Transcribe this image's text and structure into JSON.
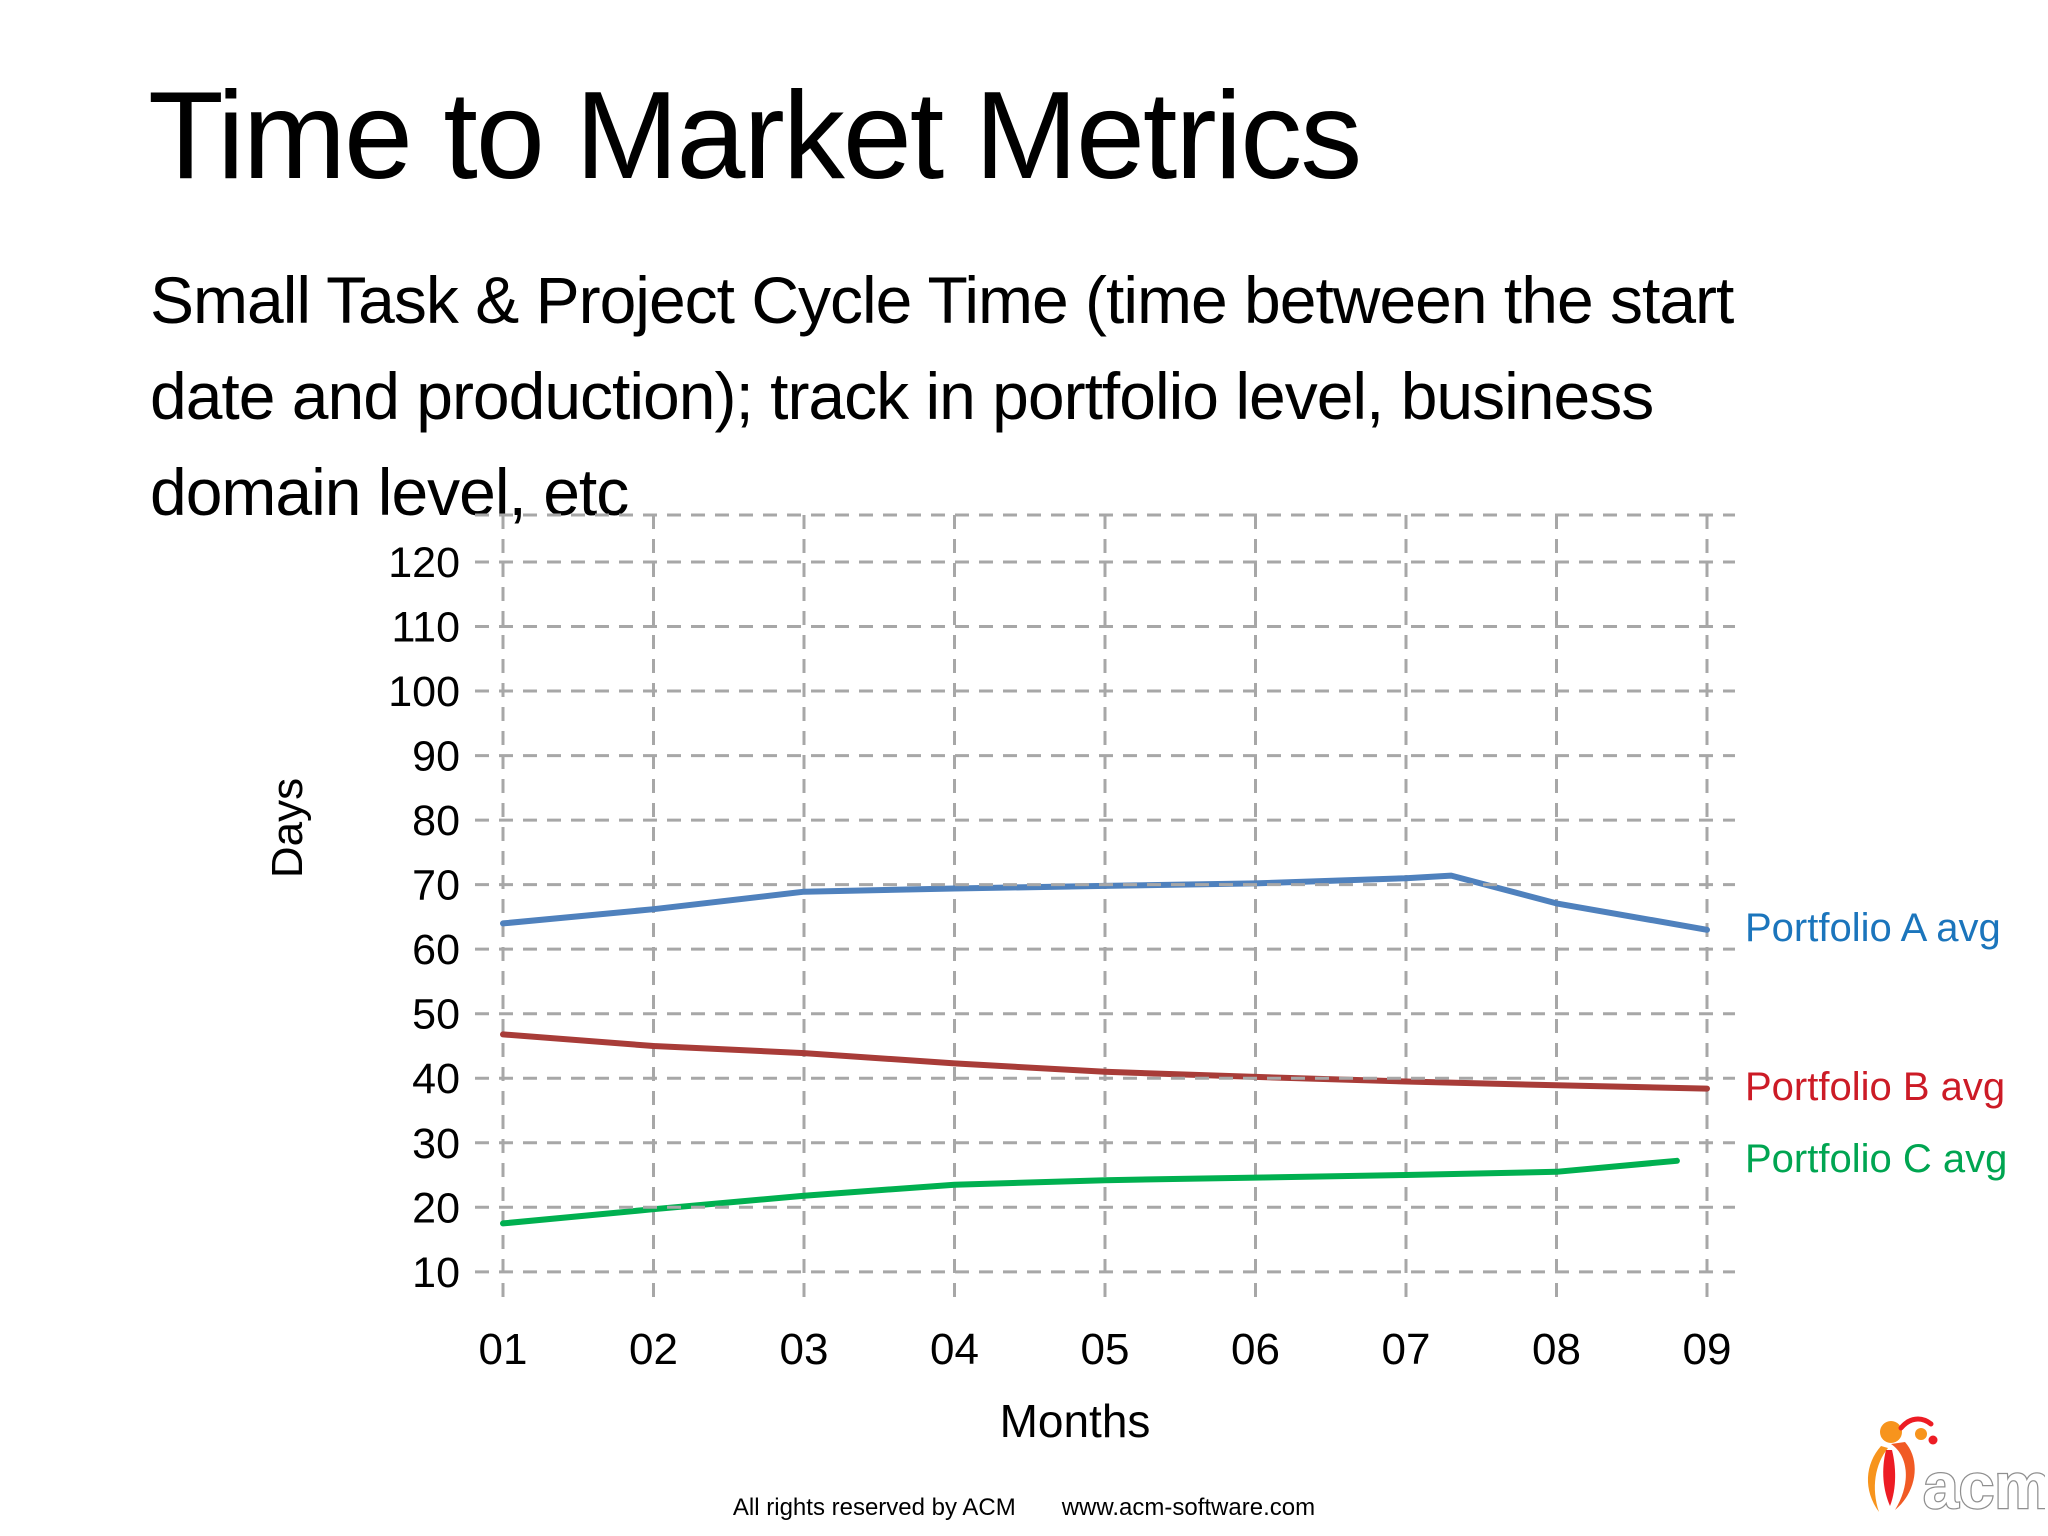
{
  "slide": {
    "title": "Time to Market Metrics",
    "subtitle_lines": [
      "Small Task & Project Cycle Time (time between the start",
      "date and production); track in portfolio level, business",
      "domain level, etc"
    ],
    "footer": {
      "rights": "All rights reserved by ACM",
      "website": "www.acm-software.com"
    },
    "logo": {
      "text": "acm"
    }
  },
  "chart_data": {
    "type": "line",
    "title": "",
    "xlabel": "Months",
    "ylabel": "Days",
    "x_ticks": [
      "01",
      "02",
      "03",
      "04",
      "05",
      "06",
      "07",
      "08",
      "09"
    ],
    "y_ticks": [
      10,
      20,
      30,
      40,
      50,
      60,
      70,
      80,
      90,
      100,
      110,
      120
    ],
    "ylim": [
      5,
      126
    ],
    "grid": "dashed-gray-both-axes",
    "legend_position": "right-of-line-ends",
    "series": [
      {
        "name": "Portfolio A avg",
        "line_color": "#4f81bd",
        "label_color": "#1b75bc",
        "points": [
          [
            1,
            64
          ],
          [
            2,
            66.2
          ],
          [
            3,
            68.9
          ],
          [
            4,
            69.4
          ],
          [
            5,
            69.8
          ],
          [
            6,
            70.2
          ],
          [
            7,
            71
          ],
          [
            7.3,
            71.4
          ],
          [
            8,
            67.1
          ],
          [
            9,
            63
          ]
        ]
      },
      {
        "name": "Portfolio B avg",
        "line_color": "#a83c38",
        "label_color": "#cc1b26",
        "points": [
          [
            1,
            46.8
          ],
          [
            2,
            45
          ],
          [
            3,
            43.9
          ],
          [
            4,
            42.3
          ],
          [
            5,
            41
          ],
          [
            6,
            40.2
          ],
          [
            7,
            39.5
          ],
          [
            8,
            38.9
          ],
          [
            9,
            38.4
          ]
        ]
      },
      {
        "name": "Portfolio C avg",
        "line_color": "#00b050",
        "label_color": "#00a551",
        "points": [
          [
            1,
            17.5
          ],
          [
            2,
            19.7
          ],
          [
            3,
            21.8
          ],
          [
            4,
            23.5
          ],
          [
            5,
            24.2
          ],
          [
            6,
            24.6
          ],
          [
            7,
            25
          ],
          [
            8,
            25.5
          ],
          [
            8.8,
            27.2
          ]
        ]
      }
    ]
  },
  "colors": {
    "background": "#ffffff",
    "gridline": "#a7a7a7",
    "text": "#000000",
    "logo_flame_light": "#f7941d",
    "logo_flame_mid": "#f15a24",
    "logo_flame_dark": "#ed1c24"
  }
}
